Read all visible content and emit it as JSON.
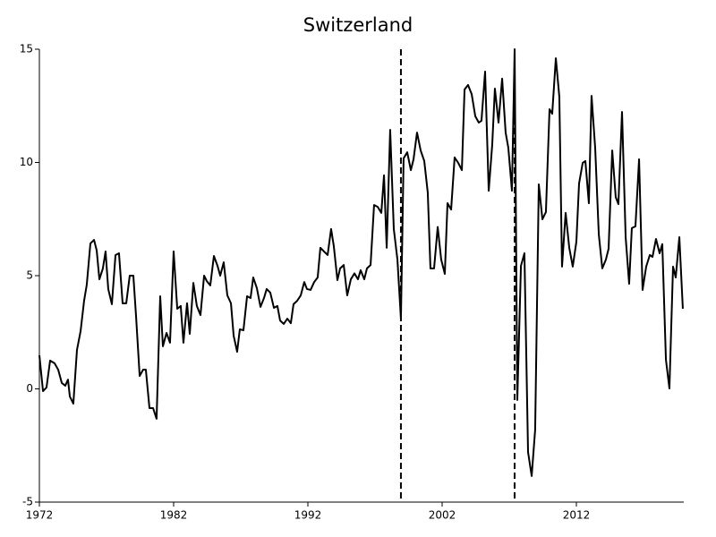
{
  "chart_data": {
    "type": "line",
    "title": "Switzerland",
    "color": "#000000",
    "xlim": [
      1972,
      2020
    ],
    "xticks": [
      1972,
      1982,
      1992,
      2002,
      2012
    ],
    "ylim": [
      -5,
      15
    ],
    "yticks": [
      -5,
      0,
      5,
      10,
      15
    ],
    "grid": false,
    "vlines": [
      1998.93,
      2007.4
    ],
    "x": [
      1972.0,
      1972.27,
      1972.53,
      1972.8,
      1973.13,
      1973.4,
      1973.67,
      1973.93,
      1974.13,
      1974.27,
      1974.53,
      1974.8,
      1975.07,
      1975.33,
      1975.53,
      1975.8,
      1976.07,
      1976.27,
      1976.47,
      1976.73,
      1976.93,
      1977.13,
      1977.4,
      1977.67,
      1977.93,
      1978.2,
      1978.47,
      1978.73,
      1979.0,
      1979.2,
      1979.47,
      1979.73,
      1979.93,
      1980.2,
      1980.47,
      1980.73,
      1981.0,
      1981.2,
      1981.47,
      1981.73,
      1982.0,
      1982.27,
      1982.53,
      1982.73,
      1983.0,
      1983.2,
      1983.47,
      1983.73,
      1984.0,
      1984.27,
      1984.47,
      1984.73,
      1985.0,
      1985.27,
      1985.47,
      1985.73,
      1986.0,
      1986.27,
      1986.47,
      1986.73,
      1986.93,
      1987.2,
      1987.47,
      1987.73,
      1987.93,
      1988.2,
      1988.47,
      1988.73,
      1988.93,
      1989.2,
      1989.47,
      1989.73,
      1989.93,
      1990.2,
      1990.47,
      1990.73,
      1990.93,
      1991.2,
      1991.47,
      1991.73,
      1991.93,
      1992.2,
      1992.47,
      1992.73,
      1992.93,
      1993.2,
      1993.47,
      1993.73,
      1993.93,
      1994.2,
      1994.4,
      1994.67,
      1994.93,
      1995.2,
      1995.47,
      1995.73,
      1995.93,
      1996.2,
      1996.4,
      1996.67,
      1996.93,
      1997.2,
      1997.47,
      1997.67,
      1997.87,
      1998.13,
      1998.4,
      1998.67,
      1998.93,
      1999.13,
      1999.4,
      1999.67,
      1999.87,
      2000.13,
      2000.4,
      2000.67,
      2000.93,
      2001.13,
      2001.4,
      2001.67,
      2001.93,
      2002.2,
      2002.4,
      2002.67,
      2002.93,
      2003.2,
      2003.47,
      2003.67,
      2003.93,
      2004.2,
      2004.47,
      2004.73,
      2004.93,
      2005.2,
      2005.47,
      2005.73,
      2005.93,
      2006.2,
      2006.47,
      2006.73,
      2006.93,
      2007.2,
      2007.4,
      2007.6,
      2007.87,
      2008.13,
      2008.4,
      2008.67,
      2008.93,
      2009.2,
      2009.47,
      2009.73,
      2010.0,
      2010.2,
      2010.47,
      2010.73,
      2010.93,
      2011.2,
      2011.47,
      2011.73,
      2012.0,
      2012.2,
      2012.47,
      2012.67,
      2012.93,
      2013.13,
      2013.4,
      2013.67,
      2013.93,
      2014.2,
      2014.4,
      2014.67,
      2014.93,
      2015.13,
      2015.4,
      2015.67,
      2015.93,
      2016.13,
      2016.4,
      2016.67,
      2016.93,
      2017.2,
      2017.47,
      2017.67,
      2017.93,
      2018.2,
      2018.4,
      2018.67,
      2018.93,
      2019.2,
      2019.4,
      2019.67,
      2019.93
    ],
    "values": [
      1.48,
      -0.1,
      0.06,
      1.25,
      1.13,
      0.85,
      0.26,
      0.14,
      0.41,
      -0.34,
      -0.65,
      1.72,
      2.55,
      3.89,
      4.6,
      6.42,
      6.58,
      6.11,
      4.84,
      5.32,
      6.07,
      4.41,
      3.74,
      5.91,
      5.99,
      3.78,
      3.78,
      5.0,
      5.0,
      3.22,
      0.57,
      0.85,
      0.85,
      -0.85,
      -0.85,
      -1.32,
      4.09,
      1.88,
      2.47,
      2.04,
      6.07,
      3.54,
      3.66,
      2.04,
      3.78,
      2.43,
      4.68,
      3.66,
      3.26,
      5.0,
      4.76,
      4.57,
      5.87,
      5.43,
      5.0,
      5.59,
      4.13,
      3.78,
      2.35,
      1.64,
      2.63,
      2.59,
      4.09,
      4.01,
      4.92,
      4.45,
      3.62,
      4.01,
      4.41,
      4.25,
      3.58,
      3.66,
      3.02,
      2.87,
      3.1,
      2.9,
      3.74,
      3.89,
      4.13,
      4.72,
      4.41,
      4.37,
      4.72,
      4.92,
      6.23,
      6.07,
      5.91,
      7.06,
      6.31,
      4.8,
      5.32,
      5.47,
      4.13,
      4.84,
      5.1,
      4.84,
      5.24,
      4.84,
      5.32,
      5.47,
      8.12,
      8.04,
      7.77,
      9.43,
      6.23,
      11.44,
      7.06,
      5.71,
      3.1,
      10.18,
      10.45,
      9.66,
      10.14,
      11.32,
      10.53,
      10.06,
      8.67,
      5.32,
      5.32,
      7.15,
      5.71,
      5.08,
      8.2,
      7.92,
      10.22,
      9.98,
      9.66,
      13.22,
      13.42,
      13.02,
      12.04,
      11.76,
      11.84,
      14.01,
      8.75,
      10.77,
      13.26,
      11.76,
      13.7,
      11.32,
      10.65,
      8.75,
      15.0,
      -0.49,
      5.43,
      5.99,
      -2.79,
      -3.85,
      -1.8,
      9.03,
      7.49,
      7.81,
      12.35,
      12.15,
      14.6,
      12.9,
      5.4,
      7.77,
      6.23,
      5.4,
      6.5,
      9.07,
      9.98,
      10.06,
      8.2,
      12.94,
      10.65,
      6.82,
      5.32,
      5.71,
      6.19,
      10.53,
      8.47,
      8.16,
      12.23,
      6.7,
      4.64,
      7.1,
      7.18,
      10.14,
      4.37,
      5.4,
      5.91,
      5.83,
      6.62,
      5.99,
      6.39,
      1.29,
      0.02,
      5.4,
      4.92,
      6.7,
      3.54
    ]
  }
}
